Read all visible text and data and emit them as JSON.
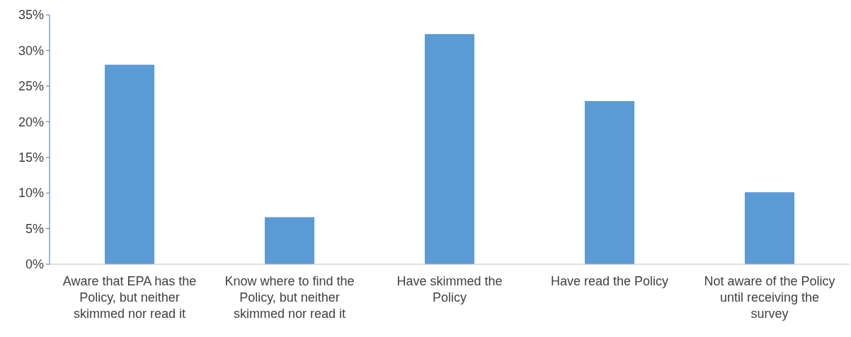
{
  "chart_data": {
    "type": "bar",
    "categories": [
      "Aware that EPA has the Policy, but neither skimmed nor read it",
      "Know where to find the Policy, but neither skimmed nor read it",
      "Have skimmed the Policy",
      "Have read the Policy",
      "Not aware of the Policy until receiving the survey"
    ],
    "values": [
      28,
      6.6,
      32.3,
      22.9,
      10.1
    ],
    "color": "#5b9bd5",
    "ylim": [
      0,
      35
    ],
    "yticks": [
      {
        "value": 0,
        "label": "0%"
      },
      {
        "value": 5,
        "label": "5%"
      },
      {
        "value": 10,
        "label": "10%"
      },
      {
        "value": 15,
        "label": "15%"
      },
      {
        "value": 20,
        "label": "20%"
      },
      {
        "value": 25,
        "label": "25%"
      },
      {
        "value": 30,
        "label": "30%"
      },
      {
        "value": 35,
        "label": "35%"
      }
    ],
    "grid": false
  }
}
